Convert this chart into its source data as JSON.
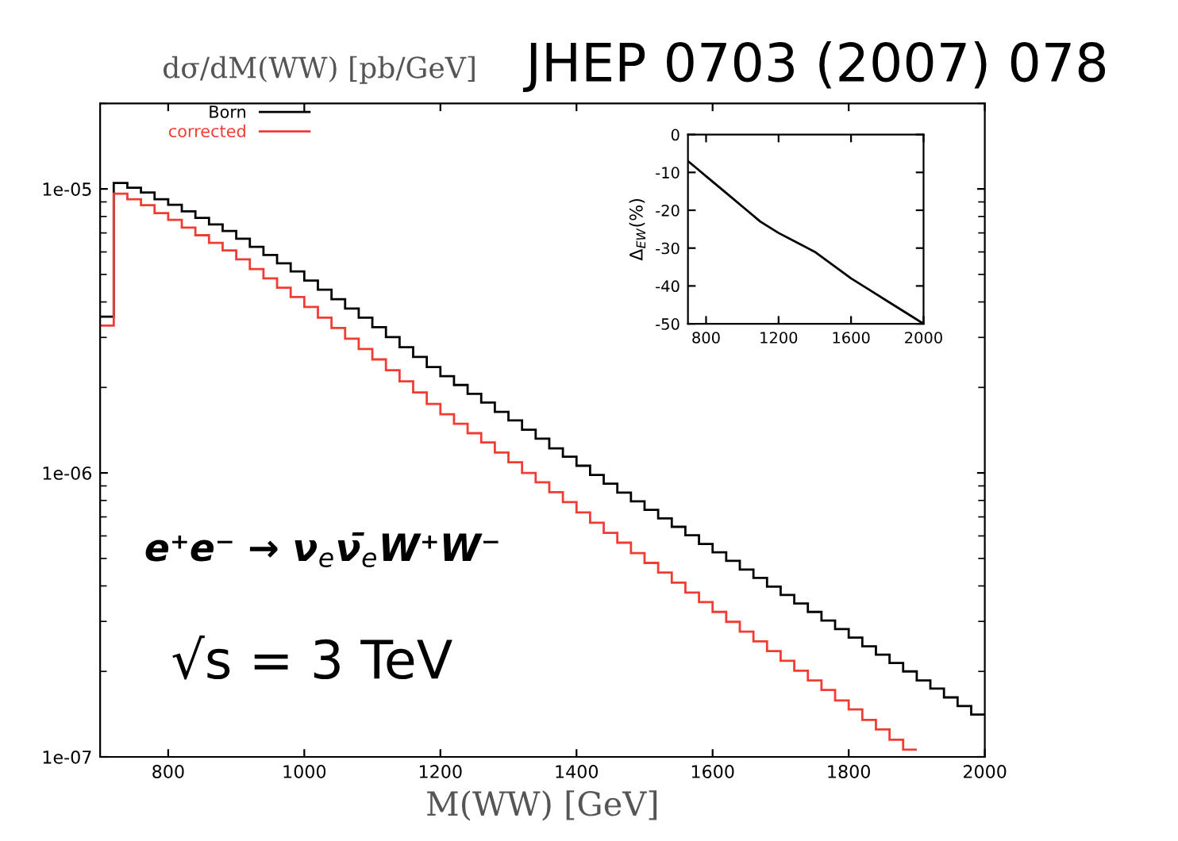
{
  "chart_data": [
    {
      "type": "histogram",
      "title": "JHEP 0703 (2007) 078",
      "ylabel": "dσ/dM(WW) [pb/GeV]",
      "xlabel": "M(WW) [GeV]",
      "annotations": [
        "e⁺e⁻ → ν$_{e}$ν̄$_{e}$W⁺W⁻",
        "√s = 3 TeV"
      ],
      "bins": [
        700,
        720,
        740,
        760,
        780,
        800,
        820,
        840,
        860,
        880,
        900,
        920,
        940,
        960,
        980,
        1000,
        1020,
        1040,
        1060,
        1080,
        1100,
        1120,
        1140,
        1160,
        1180,
        1200,
        1220,
        1240,
        1260,
        1280,
        1300,
        1320,
        1340,
        1360,
        1380,
        1400,
        1420,
        1440,
        1460,
        1480,
        1500,
        1520,
        1540,
        1560,
        1580,
        1600,
        1620,
        1640,
        1660,
        1680,
        1700,
        1720,
        1740,
        1760,
        1780,
        1800,
        1820,
        1840,
        1860,
        1880,
        1900,
        1920,
        1940,
        1960,
        1980,
        2000
      ],
      "series": [
        {
          "name": "Born",
          "color": "#000000",
          "values": [
            3.55e-06,
            1.05e-05,
            1.01e-05,
            9.72e-06,
            9.2e-06,
            8.79e-06,
            8.34e-06,
            7.91e-06,
            7.5e-06,
            7.11e-06,
            6.68e-06,
            6.25e-06,
            5.85e-06,
            5.47e-06,
            5.12e-06,
            4.76e-06,
            4.42e-06,
            4.09e-06,
            3.79e-06,
            3.52e-06,
            3.26e-06,
            3.01e-06,
            2.77e-06,
            2.56e-06,
            2.36e-06,
            2.19e-06,
            2.04e-06,
            1.9e-06,
            1.77e-06,
            1.64e-06,
            1.53e-06,
            1.42e-06,
            1.32e-06,
            1.22e-06,
            1.14e-06,
            1.06e-06,
            9.84e-07,
            9.16e-07,
            8.53e-07,
            7.94e-07,
            7.41e-07,
            6.92e-07,
            6.46e-07,
            6.03e-07,
            5.62e-07,
            5.25e-07,
            4.9e-07,
            4.57e-07,
            4.27e-07,
            3.98e-07,
            3.72e-07,
            3.47e-07,
            3.24e-07,
            3.02e-07,
            2.82e-07,
            2.63e-07,
            2.45e-07,
            2.29e-07,
            2.14e-07,
            2e-07,
            1.86e-07,
            1.74e-07,
            1.62e-07,
            1.51e-07,
            1.41e-07
          ]
        },
        {
          "name": "corrected",
          "color": "#f03c32",
          "bins": [
            700,
            720,
            740,
            760,
            780,
            800,
            820,
            840,
            860,
            880,
            900,
            920,
            940,
            960,
            980,
            1000,
            1020,
            1040,
            1060,
            1080,
            1100,
            1120,
            1140,
            1160,
            1180,
            1200,
            1220,
            1240,
            1260,
            1280,
            1300,
            1320,
            1340,
            1360,
            1380,
            1400,
            1420,
            1440,
            1460,
            1480,
            1500,
            1520,
            1540,
            1560,
            1580,
            1600,
            1620,
            1640,
            1660,
            1680,
            1700,
            1720,
            1740,
            1760,
            1780,
            1800,
            1820,
            1840,
            1860,
            1880,
            1900
          ],
          "values": [
            3.3e-06,
            9.62e-06,
            9.2e-06,
            8.77e-06,
            8.22e-06,
            7.78e-06,
            7.31e-06,
            6.87e-06,
            6.46e-06,
            6.07e-06,
            5.65e-06,
            5.22e-06,
            4.84e-06,
            4.49e-06,
            4.16e-06,
            3.84e-06,
            3.52e-06,
            3.24e-06,
            2.97e-06,
            2.73e-06,
            2.51e-06,
            2.3e-06,
            2.1e-06,
            1.92e-06,
            1.75e-06,
            1.61e-06,
            1.49e-06,
            1.38e-06,
            1.28e-06,
            1.18e-06,
            1.09e-06,
            1e-06,
            9.27e-07,
            8.55e-07,
            7.89e-07,
            7.26e-07,
            6.68e-07,
            6.15e-07,
            5.68e-07,
            5.22e-07,
            4.82e-07,
            4.46e-07,
            4.11e-07,
            3.79e-07,
            3.51e-07,
            3.24e-07,
            2.99e-07,
            2.76e-07,
            2.55e-07,
            2.36e-07,
            2.18e-07,
            2.01e-07,
            1.86e-07,
            1.72e-07,
            1.58e-07,
            1.47e-07,
            1.35e-07,
            1.25e-07,
            1.15e-07,
            1.06e-07
          ]
        }
      ],
      "xlim": [
        700,
        2000
      ],
      "xticks": [
        800,
        1000,
        1200,
        1400,
        1600,
        1800,
        2000
      ],
      "log": "y",
      "ylim": [
        1e-07,
        2e-05
      ],
      "yticks": [
        {
          "value": 1e-07,
          "label": "1e-07"
        },
        {
          "value": 1e-06,
          "label": "1e-06"
        },
        {
          "value": 1e-05,
          "label": "1e-05"
        }
      ],
      "legend": "top left",
      "grid": false
    },
    {
      "type": "line",
      "ylabel": "Δ$_{EW}$(%)",
      "x": [
        700,
        750,
        800,
        900,
        1000,
        1100,
        1200,
        1300,
        1400,
        1500,
        1600,
        1700,
        1800,
        1900,
        2000
      ],
      "series": [
        {
          "color": "#000000",
          "values": [
            -7,
            -9,
            -11,
            -15,
            -19,
            -23,
            -26,
            -28.5,
            -31,
            -34.5,
            -38,
            -41,
            -44,
            -47,
            -50
          ]
        }
      ],
      "xlim": [
        700,
        2000
      ],
      "xticks": [
        800,
        1200,
        1600,
        2000
      ],
      "ylim": [
        -50,
        0
      ],
      "yticks": [
        0,
        -10,
        -20,
        -30,
        -40,
        -50
      ],
      "grid": false
    }
  ]
}
